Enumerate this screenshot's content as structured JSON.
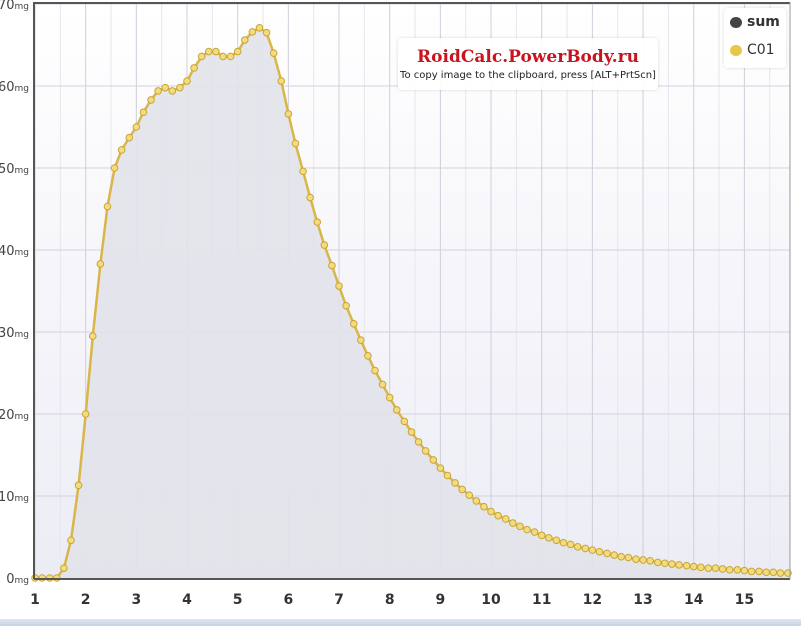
{
  "chart_data": {
    "type": "area",
    "title": "",
    "xlabel": "",
    "ylabel": "",
    "xlim": [
      1,
      15.9
    ],
    "ylim": [
      0,
      70
    ],
    "y_unit": "mg",
    "x_ticks": [
      "1",
      "2",
      "3",
      "4",
      "5",
      "6",
      "7",
      "8",
      "9",
      "10",
      "11",
      "12",
      "13",
      "14",
      "15"
    ],
    "y_ticks": [
      "0",
      "10",
      "20",
      "30",
      "40",
      "50",
      "60",
      "70"
    ],
    "grid": true,
    "legend_position": "top-right",
    "legend": [
      {
        "name": "sum",
        "color": "#444444"
      },
      {
        "name": "C01",
        "color": "#e8c64a"
      }
    ],
    "series": [
      {
        "name": "C01",
        "color": "#d9b54a",
        "fill": "#e2e2ea",
        "x": [
          1,
          1.14,
          1.29,
          1.43,
          1.57,
          1.71,
          1.86,
          2,
          2.14,
          2.29,
          2.43,
          2.57,
          2.71,
          2.86,
          3,
          3.14,
          3.29,
          3.43,
          3.57,
          3.71,
          3.86,
          4,
          4.14,
          4.29,
          4.43,
          4.57,
          4.71,
          4.86,
          5,
          5.14,
          5.29,
          5.43,
          5.57,
          5.71,
          5.86,
          6,
          6.14,
          6.29,
          6.43,
          6.57,
          6.71,
          6.86,
          7,
          7.14,
          7.29,
          7.43,
          7.57,
          7.71,
          7.86,
          8,
          8.14,
          8.29,
          8.43,
          8.57,
          8.71,
          8.86,
          9,
          9.14,
          9.29,
          9.43,
          9.57,
          9.71,
          9.86,
          10,
          10.14,
          10.29,
          10.43,
          10.57,
          10.71,
          10.86,
          11,
          11.14,
          11.29,
          11.43,
          11.57,
          11.71,
          11.86,
          12,
          12.14,
          12.29,
          12.43,
          12.57,
          12.71,
          12.86,
          13,
          13.14,
          13.29,
          13.43,
          13.57,
          13.71,
          13.86,
          14,
          14.14,
          14.29,
          14.43,
          14.57,
          14.71,
          14.86,
          15,
          15.14,
          15.29,
          15.43,
          15.57,
          15.71,
          15.86
        ],
        "values": [
          0,
          0,
          0,
          0,
          1.2,
          4.6,
          11.3,
          20,
          29.5,
          38.3,
          45.3,
          50,
          52.2,
          53.7,
          55,
          56.8,
          58.3,
          59.4,
          59.8,
          59.4,
          59.8,
          60.6,
          62.2,
          63.6,
          64.2,
          64.2,
          63.6,
          63.6,
          64.2,
          65.6,
          66.6,
          67.1,
          66.5,
          64.0,
          60.6,
          56.6,
          53.0,
          49.6,
          46.4,
          43.4,
          40.6,
          38.1,
          35.6,
          33.2,
          31.0,
          29.0,
          27.1,
          25.3,
          23.6,
          22.0,
          20.5,
          19.1,
          17.8,
          16.6,
          15.5,
          14.4,
          13.4,
          12.5,
          11.6,
          10.8,
          10.1,
          9.4,
          8.7,
          8.1,
          7.6,
          7.2,
          6.7,
          6.3,
          5.9,
          5.6,
          5.2,
          4.9,
          4.6,
          4.3,
          4.1,
          3.8,
          3.6,
          3.4,
          3.2,
          3.0,
          2.8,
          2.6,
          2.5,
          2.3,
          2.2,
          2.1,
          1.9,
          1.8,
          1.7,
          1.6,
          1.5,
          1.4,
          1.3,
          1.2,
          1.2,
          1.1,
          1.0,
          1.0,
          0.9,
          0.8,
          0.8,
          0.7,
          0.7,
          0.6,
          0.6
        ]
      }
    ]
  },
  "watermark": {
    "title": "RoidCalc.PowerBody.ru",
    "subtitle": "To copy image to the clipboard, press [ALT+PrtScn]"
  }
}
